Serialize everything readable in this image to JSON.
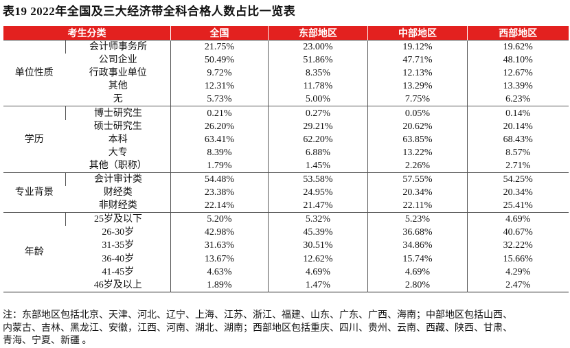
{
  "title": "表19  2022年全国及三大经济带全科合格人数占比一览表",
  "table": {
    "header": [
      "考生分类",
      "全国",
      "东部地区",
      "中部地区",
      "西部地区"
    ],
    "groups": [
      {
        "label": "单位性质",
        "rows": [
          {
            "label": "会计师事务所",
            "values": [
              "21.75%",
              "23.00%",
              "19.12%",
              "19.62%"
            ]
          },
          {
            "label": "公司企业",
            "values": [
              "50.49%",
              "51.86%",
              "47.71%",
              "48.10%"
            ]
          },
          {
            "label": "行政事业单位",
            "values": [
              "9.72%",
              "8.35%",
              "12.13%",
              "12.67%"
            ]
          },
          {
            "label": "其他",
            "values": [
              "12.31%",
              "11.78%",
              "13.29%",
              "13.39%"
            ]
          },
          {
            "label": "无",
            "values": [
              "5.73%",
              "5.00%",
              "7.75%",
              "6.23%"
            ]
          }
        ]
      },
      {
        "label": "学历",
        "rows": [
          {
            "label": "博士研究生",
            "values": [
              "0.21%",
              "0.27%",
              "0.05%",
              "0.14%"
            ]
          },
          {
            "label": "硕士研究生",
            "values": [
              "26.20%",
              "29.21%",
              "20.62%",
              "20.14%"
            ]
          },
          {
            "label": "本科",
            "values": [
              "63.41%",
              "62.20%",
              "63.85%",
              "68.43%"
            ]
          },
          {
            "label": "大专",
            "values": [
              "8.39%",
              "6.88%",
              "13.22%",
              "8.57%"
            ]
          },
          {
            "label": "其他（职称）",
            "values": [
              "1.79%",
              "1.45%",
              "2.26%",
              "2.71%"
            ]
          }
        ]
      },
      {
        "label": "专业背景",
        "rows": [
          {
            "label": "会计审计类",
            "values": [
              "54.48%",
              "53.58%",
              "57.55%",
              "54.25%"
            ]
          },
          {
            "label": "财经类",
            "values": [
              "23.38%",
              "24.95%",
              "20.34%",
              "20.34%"
            ]
          },
          {
            "label": "非财经类",
            "values": [
              "22.14%",
              "21.47%",
              "22.11%",
              "25.41%"
            ]
          }
        ]
      },
      {
        "label": "年龄",
        "rows": [
          {
            "label": "25岁及以下",
            "values": [
              "5.20%",
              "5.32%",
              "5.23%",
              "4.69%"
            ]
          },
          {
            "label": "26-30岁",
            "values": [
              "42.98%",
              "45.39%",
              "36.68%",
              "40.67%"
            ]
          },
          {
            "label": "31-35岁",
            "values": [
              "31.63%",
              "30.51%",
              "34.86%",
              "32.22%"
            ]
          },
          {
            "label": "36-40岁",
            "values": [
              "13.67%",
              "12.62%",
              "15.74%",
              "15.66%"
            ]
          },
          {
            "label": "41-45岁",
            "values": [
              "4.63%",
              "4.69%",
              "4.69%",
              "4.29%"
            ]
          },
          {
            "label": "46岁及以上",
            "values": [
              "1.89%",
              "1.47%",
              "2.80%",
              "2.47%"
            ]
          }
        ]
      }
    ]
  },
  "note": [
    "注：东部地区包括北京、天津、河北、辽宁、上海、江苏、浙江、福建、山东、广东、广西、海南；中部地区包括山西、",
    "内蒙古、吉林、黑龙江、安徽，江西、河南、湖北、湖南；西部地区包括重庆、四川、贵州、云南、西藏、陕西、甘肃、",
    "青海、宁夏、新疆 。"
  ]
}
